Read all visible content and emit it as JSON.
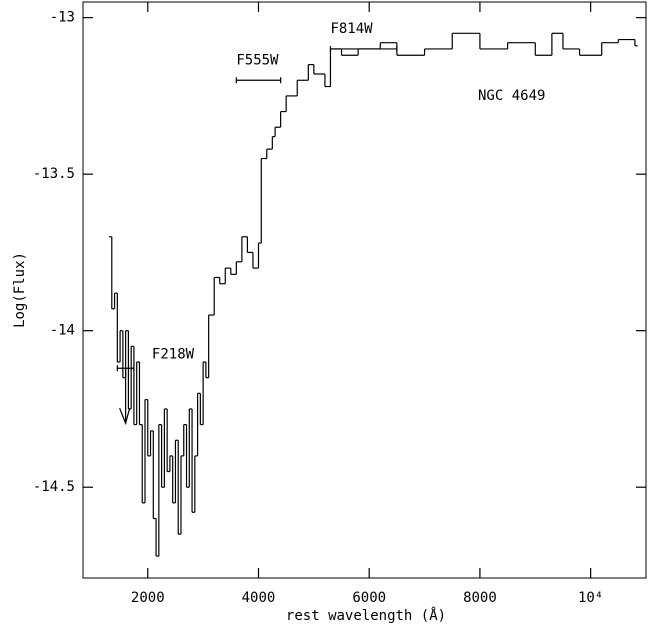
{
  "chart_data": {
    "type": "step",
    "xlabel": "rest wavelength (Å)",
    "ylabel": "Log(Flux)",
    "xlim": [
      830,
      11000
    ],
    "ylim": [
      -14.79,
      -12.95
    ],
    "xticks": [
      2000,
      4000,
      6000,
      8000,
      {
        "value": 10000,
        "label": "10⁴"
      }
    ],
    "yticks": [
      -13,
      -13.5,
      -14,
      -14.5
    ],
    "color": "#000000",
    "series": [
      {
        "name": "NGC 4649",
        "color": "#000000",
        "x": [
          1300,
          1350,
          1400,
          1450,
          1500,
          1550,
          1600,
          1650,
          1700,
          1750,
          1800,
          1850,
          1900,
          1950,
          2000,
          2050,
          2100,
          2150,
          2200,
          2250,
          2300,
          2350,
          2400,
          2450,
          2500,
          2550,
          2600,
          2650,
          2700,
          2750,
          2800,
          2850,
          2900,
          2950,
          3000,
          3050,
          3100,
          3200,
          3300,
          3400,
          3500,
          3600,
          3700,
          3800,
          3900,
          4000,
          4050,
          4150,
          4250,
          4300,
          4400,
          4500,
          4700,
          4900,
          5000,
          5200,
          5300,
          5500,
          5800,
          6200,
          6500,
          7000,
          7500,
          8000,
          8500,
          9000,
          9300,
          9500,
          9800,
          10200,
          10500,
          10800
        ],
        "values": [
          -13.7,
          -13.93,
          -13.88,
          -14.1,
          -14.0,
          -14.15,
          -14.0,
          -14.25,
          -14.05,
          -14.3,
          -14.1,
          -14.3,
          -14.55,
          -14.22,
          -14.4,
          -14.32,
          -14.6,
          -14.72,
          -14.3,
          -14.5,
          -14.25,
          -14.45,
          -14.4,
          -14.55,
          -14.35,
          -14.65,
          -14.4,
          -14.3,
          -14.5,
          -14.25,
          -14.58,
          -14.4,
          -14.2,
          -14.3,
          -14.1,
          -14.15,
          -13.95,
          -13.83,
          -13.85,
          -13.8,
          -13.82,
          -13.78,
          -13.7,
          -13.75,
          -13.8,
          -13.72,
          -13.45,
          -13.42,
          -13.38,
          -13.35,
          -13.3,
          -13.25,
          -13.2,
          -13.15,
          -13.18,
          -13.22,
          -13.1,
          -13.12,
          -13.1,
          -13.08,
          -13.12,
          -13.1,
          -13.05,
          -13.1,
          -13.08,
          -13.12,
          -13.05,
          -13.1,
          -13.12,
          -13.08,
          -13.07,
          -13.09
        ]
      }
    ],
    "markers": [
      {
        "name": "F218W",
        "x": 1600,
        "xmin": 1450,
        "xmax": 1750,
        "y": -14.12,
        "upper_limit": true
      },
      {
        "name": "F555W",
        "x": 4000,
        "xmin": 3600,
        "xmax": 4400,
        "y": -13.2,
        "upper_limit": false
      },
      {
        "name": "F814W",
        "x": 5900,
        "xmin": 5300,
        "xmax": 6500,
        "y": -13.1,
        "upper_limit": false
      }
    ]
  }
}
